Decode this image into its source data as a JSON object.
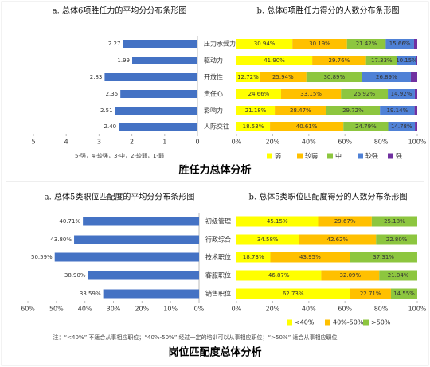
{
  "chart_data": [
    {
      "type": "bar",
      "orientation": "horizontal",
      "title": "a. 总体6项胜任力的平均分分布条形图",
      "categories": [
        "压力承受力",
        "驱动力",
        "开放性",
        "责任心",
        "影响力",
        "人际交往"
      ],
      "values": [
        2.27,
        1.99,
        2.83,
        2.35,
        2.51,
        2.4
      ],
      "value_labels": [
        "2.27",
        "1.99",
        "2.83",
        "2.35",
        "2.51",
        "2.40"
      ],
      "color": "#4472c4",
      "xlim": [
        5,
        0
      ],
      "xticks": [
        5,
        4,
        3,
        2,
        1,
        0
      ],
      "note": "5-强，4-较强，3-中，2-较弱，1-弱"
    },
    {
      "type": "stacked_bar",
      "orientation": "horizontal",
      "title": "b. 总体6项胜任力得分的人数分布条形图",
      "series": [
        {
          "name": "弱",
          "color": "#ffff00",
          "values": [
            30.94,
            41.9,
            12.72,
            24.66,
            21.18,
            18.53
          ],
          "value_labels": [
            "30.94%",
            "41.90%",
            "12.72%",
            "24.66%",
            "21.18%",
            "18.53%"
          ]
        },
        {
          "name": "较弱",
          "color": "#ffc000",
          "values": [
            30.19,
            29.76,
            25.94,
            33.15,
            28.47,
            40.61
          ],
          "value_labels": [
            "30.19%",
            "29.76%",
            "25.94%",
            "33.15%",
            "28.47%",
            "40.61%"
          ]
        },
        {
          "name": "中",
          "color": "#8dc63f",
          "values": [
            21.42,
            17.33,
            30.89,
            25.92,
            29.72,
            24.79
          ],
          "value_labels": [
            "21.42%",
            "17.33%",
            "30.89%",
            "25.92%",
            "29.72%",
            "24.79%"
          ]
        },
        {
          "name": "较强",
          "color": "#4f81d6",
          "values": [
            15.66,
            10.15,
            26.89,
            14.92,
            19.14,
            14.78
          ],
          "value_labels": [
            "15.66%",
            "10.15%",
            "26.89%",
            "14.92%",
            "19.14%",
            "14.78%"
          ]
        },
        {
          "name": "强",
          "color": "#7030a0",
          "values": [
            1.79,
            0.86,
            3.56,
            1.35,
            1.49,
            1.29
          ]
        }
      ],
      "xlim": [
        0,
        100
      ],
      "xticks": [
        {
          "value": 0,
          "label": "0%"
        },
        {
          "value": 20,
          "label": "20%"
        },
        {
          "value": 40,
          "label": "40%"
        },
        {
          "value": 60,
          "label": "60%"
        },
        {
          "value": 80,
          "label": "80%"
        },
        {
          "value": 100,
          "label": "100%"
        }
      ]
    },
    {
      "type": "bar",
      "orientation": "horizontal",
      "title": "a. 总体5类职位匹配度的平均分分布条形图",
      "categories": [
        "初级管理",
        "行政综合",
        "技术职位",
        "客服职位",
        "销售职位"
      ],
      "values": [
        40.71,
        43.8,
        50.59,
        38.9,
        33.59
      ],
      "value_labels": [
        "40.71%",
        "43.80%",
        "50.59%",
        "38.90%",
        "33.59%"
      ],
      "color": "#4472c4",
      "xlim": [
        60,
        0
      ],
      "xticks": [
        {
          "value": 60,
          "label": "60%"
        },
        {
          "value": 50,
          "label": "50%"
        },
        {
          "value": 40,
          "label": "40%"
        },
        {
          "value": 30,
          "label": "30%"
        },
        {
          "value": 20,
          "label": "20%"
        },
        {
          "value": 10,
          "label": "10%"
        },
        {
          "value": 0,
          "label": "0%"
        }
      ]
    },
    {
      "type": "stacked_bar",
      "orientation": "horizontal",
      "title": "b. 总体5类职位匹配度得分的人数分布条形图",
      "series": [
        {
          "name": "<40%",
          "color": "#ffff00",
          "values": [
            45.15,
            34.58,
            18.73,
            46.87,
            62.73
          ],
          "value_labels": [
            "45.15%",
            "34.58%",
            "18.73%",
            "46.87%",
            "62.73%"
          ]
        },
        {
          "name": "40%-50%",
          "color": "#ffc000",
          "values": [
            29.67,
            42.62,
            43.95,
            32.09,
            22.71
          ],
          "value_labels": [
            "29.67%",
            "42.62%",
            "43.95%",
            "32.09%",
            "22.71%"
          ]
        },
        {
          "name": ">50%",
          "color": "#8dc63f",
          "values": [
            25.18,
            22.8,
            37.31,
            21.04,
            14.55
          ],
          "value_labels": [
            "25.18%",
            "22.80%",
            "37.31%",
            "21.04%",
            "14.55%"
          ]
        }
      ],
      "xlim": [
        0,
        100
      ],
      "xticks": [
        {
          "value": 0,
          "label": "0%"
        },
        {
          "value": 20,
          "label": "20%"
        },
        {
          "value": 40,
          "label": "40%"
        },
        {
          "value": 60,
          "label": "60%"
        },
        {
          "value": 80,
          "label": "80%"
        },
        {
          "value": 100,
          "label": "100%"
        }
      ]
    }
  ],
  "sections": [
    {
      "title": "胜任力总体分析"
    },
    {
      "title": "岗位匹配度总体分析",
      "note": "注：“<40%” 不适合从事相应职位；“40%-50%” 经过一定的培训可以从事相应职位；“>50%” 适合从事相应职位"
    }
  ]
}
